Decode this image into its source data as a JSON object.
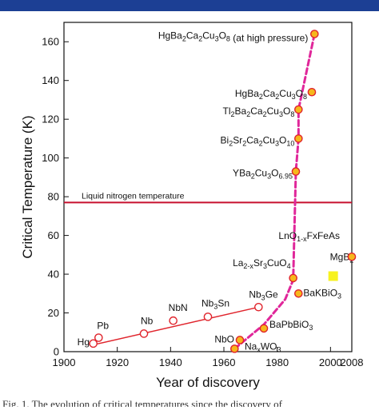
{
  "colors": {
    "top_bar": "#1c3f94",
    "fit_line": "#e0242c",
    "nitrogen_line": "#c8102e",
    "dashed_trend": "#e0279a",
    "marker_fill": "#f6b71b",
    "marker_edge": "#e0242c",
    "mgb2_fill": "#f7f21f",
    "text": "#111111"
  },
  "caption_text": "Fig. 1.  The evolution of critical temperatures since the discovery of",
  "chart_data": {
    "type": "scatter",
    "xlabel": "Year of discovery",
    "ylabel": "Critical Temperature (K)",
    "xlim": [
      1900,
      2008
    ],
    "ylim": [
      0,
      170
    ],
    "xticks": [
      {
        "value": 1900,
        "label": "1900"
      },
      {
        "value": 1920,
        "label": "1920"
      },
      {
        "value": 1940,
        "label": "1940"
      },
      {
        "value": 1960,
        "label": "1960"
      },
      {
        "value": 1980,
        "label": "1980"
      },
      {
        "value": 2000,
        "label": "2000"
      },
      {
        "value": 2008,
        "label": "2008"
      }
    ],
    "yticks": [
      0,
      20,
      40,
      60,
      80,
      100,
      120,
      140,
      160
    ],
    "reference_line": {
      "y": 77,
      "label": "Liquid nitrogen temperature"
    },
    "points": [
      {
        "x": 1911,
        "y": 4.2,
        "label": "Hg",
        "style": "open"
      },
      {
        "x": 1913,
        "y": 7.2,
        "label": "Pb",
        "style": "open"
      },
      {
        "x": 1930,
        "y": 9.3,
        "label": "Nb",
        "style": "open"
      },
      {
        "x": 1941,
        "y": 16,
        "label": "NbN",
        "style": "open"
      },
      {
        "x": 1954,
        "y": 18,
        "label": "Nb3Sn",
        "style": "open"
      },
      {
        "x": 1973,
        "y": 23,
        "label": "Nb3Ge",
        "style": "open"
      },
      {
        "x": 1964,
        "y": 1.5,
        "label": "NbO",
        "style": "filled"
      },
      {
        "x": 1966,
        "y": 6,
        "label": "NaxWO3",
        "style": "filled"
      },
      {
        "x": 1975,
        "y": 12,
        "label": "BaPbBiO3",
        "style": "filled"
      },
      {
        "x": 1986,
        "y": 38,
        "label": "La2-xSr3CuO4",
        "style": "filled"
      },
      {
        "x": 1988,
        "y": 30,
        "label": "BaKBiO3",
        "style": "filled"
      },
      {
        "x": 1987,
        "y": 93,
        "label": "YBa2Cu3O6.95",
        "style": "filled"
      },
      {
        "x": 1988,
        "y": 110,
        "label": "Bi2Sr2Ca2Cu3O10",
        "style": "filled"
      },
      {
        "x": 1988,
        "y": 125,
        "label": "Tl2Ba2Ca2Cu3O8",
        "style": "filled"
      },
      {
        "x": 1993,
        "y": 134,
        "label": "HgBa2Ca2Cu3O8",
        "style": "filled"
      },
      {
        "x": 1994,
        "y": 164,
        "label": "HgBa2Ca2Cu3O8 (at high pressure)",
        "style": "filled"
      },
      {
        "x": 2001,
        "y": 39,
        "label": "MgB2",
        "style": "square"
      },
      {
        "x": 2008,
        "y": 49,
        "label": "LnO1-xFxFeAs",
        "style": "filled"
      }
    ],
    "fit_line": {
      "x": [
        1910,
        1973
      ],
      "y": [
        3.2,
        23
      ]
    },
    "dashed_trend": {
      "x": [
        1964,
        1975,
        1983,
        1986,
        1987,
        1988,
        1988,
        1994
      ],
      "y": [
        1.5,
        14,
        27,
        37,
        93,
        110,
        125,
        164
      ]
    },
    "grid": false
  }
}
